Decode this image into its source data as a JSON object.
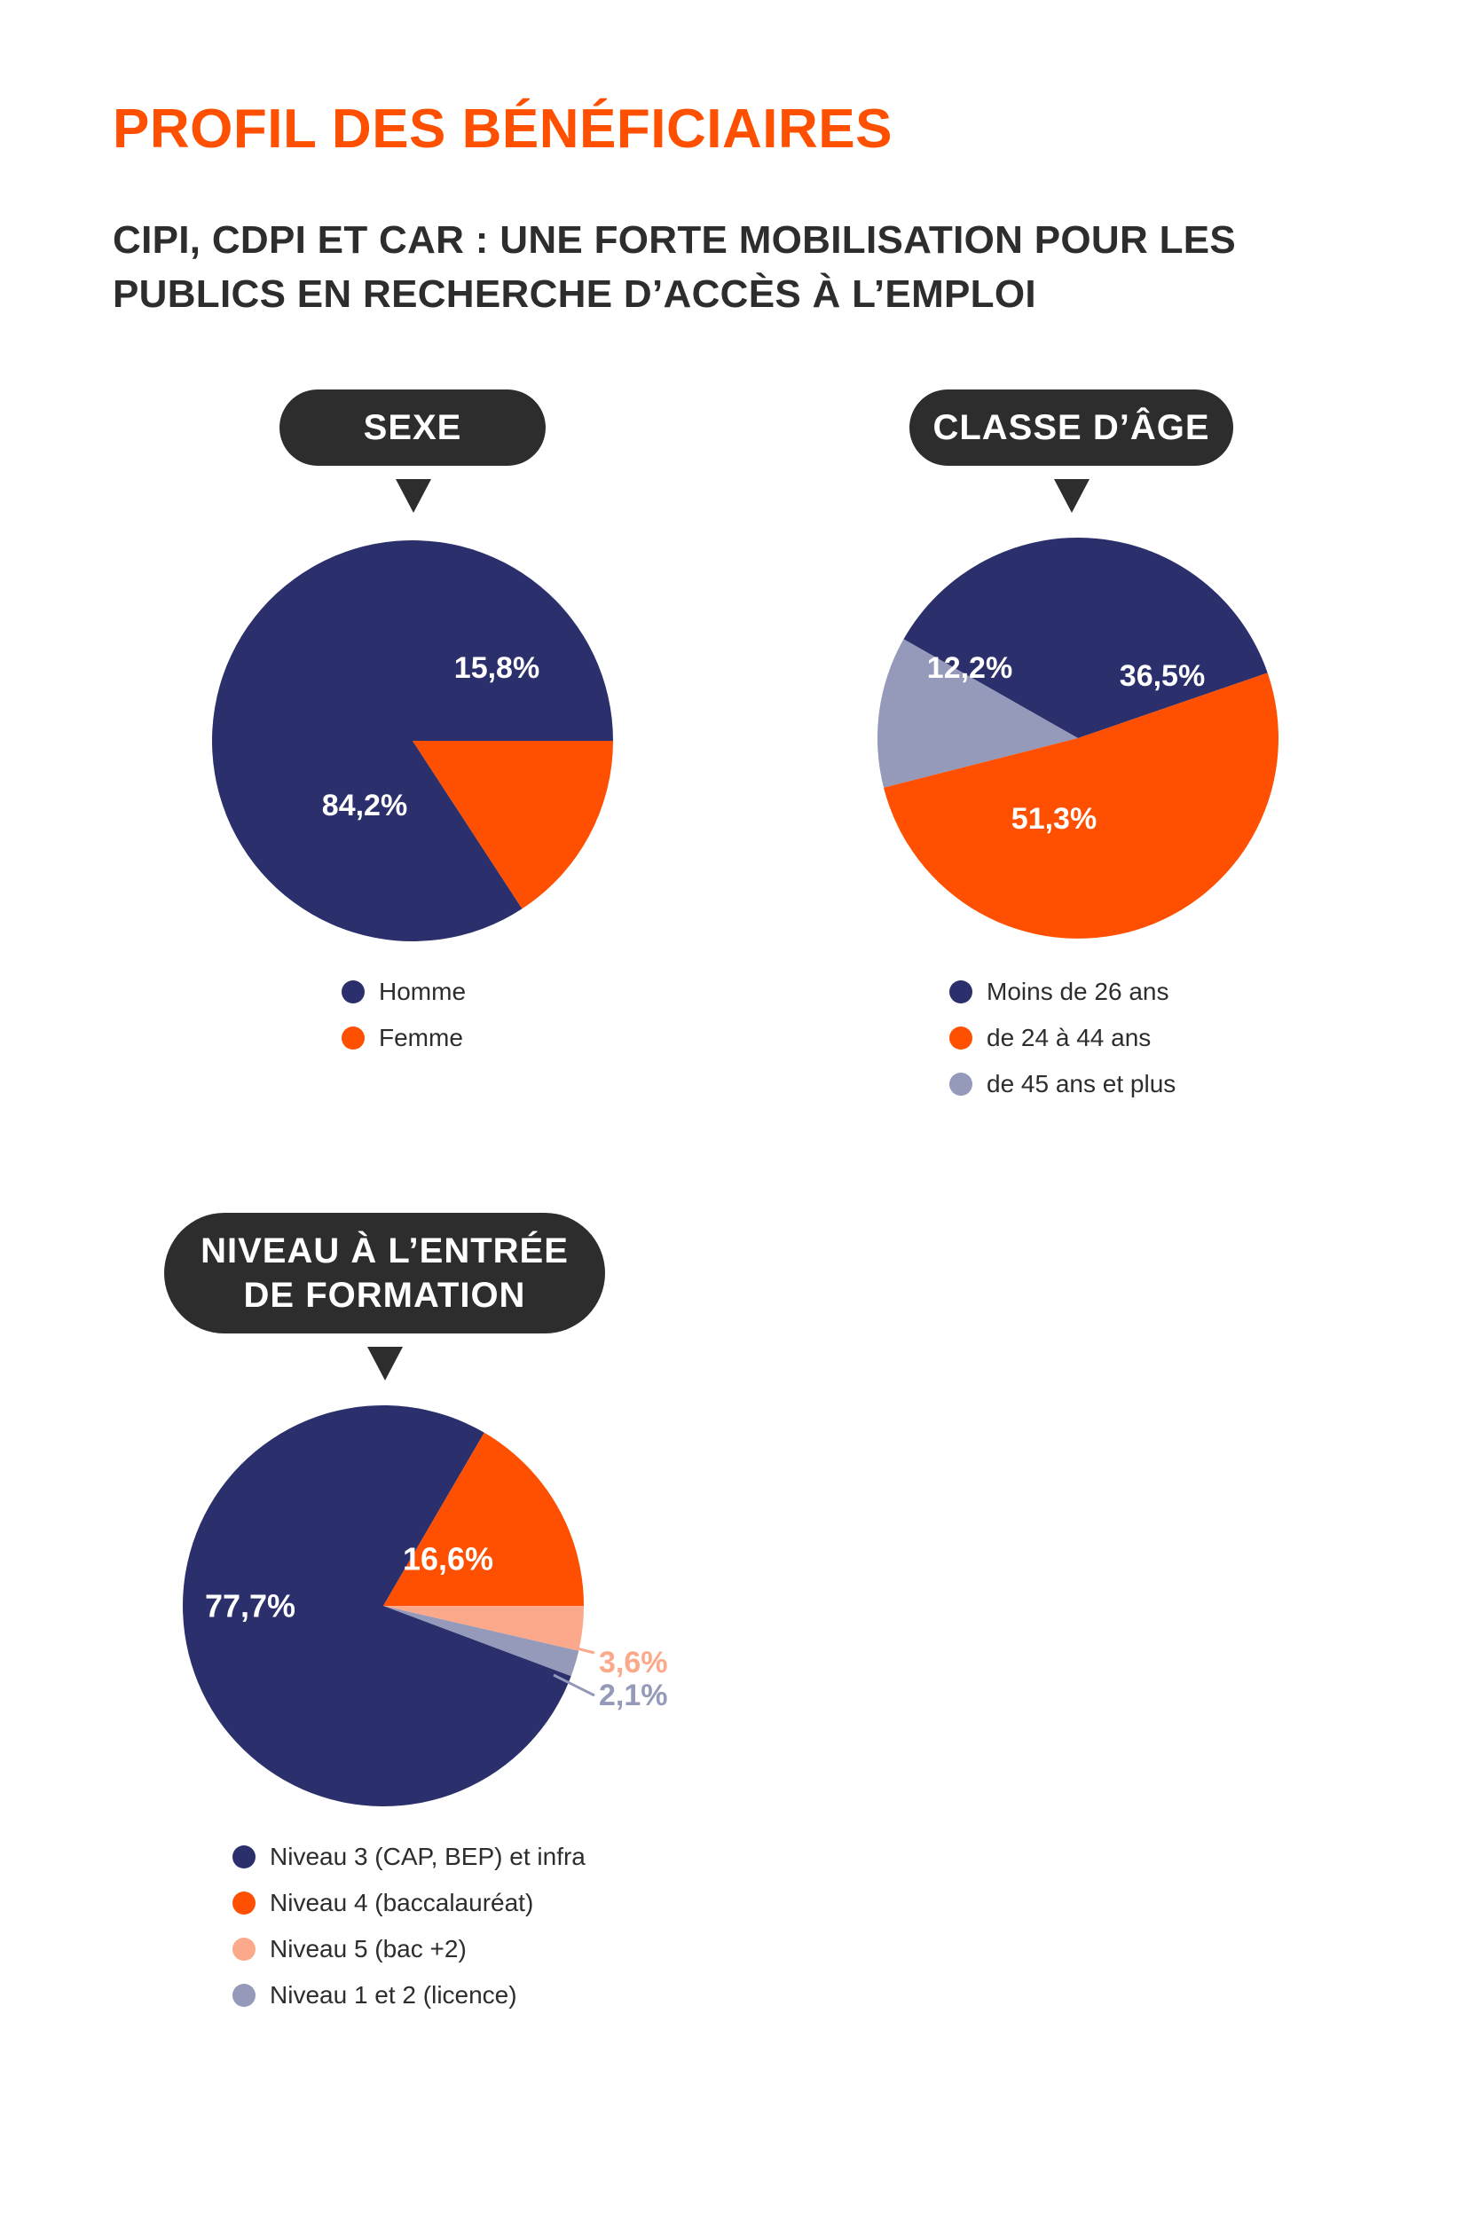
{
  "page": {
    "title": "PROFIL DES BÉNÉFICIAIRES",
    "subtitle_line1": "CIPI, CDPI ET CAR : UNE FORTE MOBILISATION POUR LES",
    "subtitle_line2": "PUBLICS EN RECHERCHE D’ACCÈS À L’EMPLOI"
  },
  "colors": {
    "navy": "#2b2f6b",
    "orange": "#fe5000",
    "peach": "#fba98a",
    "lavender": "#9599ba",
    "accent": "#fe5000",
    "pill": "#2d2d2d"
  },
  "chart_data": [
    {
      "type": "pie",
      "title": "SEXE",
      "start_angle_deg": 0,
      "direction": "counterclockwise",
      "slices": [
        {
          "label": "Homme",
          "value": 84.2,
          "display": "84,2%",
          "color": "#2b2f6b"
        },
        {
          "label": "Femme",
          "value": 15.8,
          "display": "15,8%",
          "color": "#fe5000"
        }
      ]
    },
    {
      "type": "pie",
      "title": "CLASSE D’ÂGE",
      "start_angle_deg": 19,
      "direction": "counterclockwise",
      "slices": [
        {
          "label": "Moins de 26 ans",
          "value": 36.5,
          "display": "36,5%",
          "color": "#2b2f6b"
        },
        {
          "label": "de 45 ans et plus",
          "value": 12.2,
          "display": "12,2%",
          "color": "#9599ba"
        },
        {
          "label": "de 24 à 44 ans",
          "value": 51.3,
          "display": "51,3%",
          "color": "#fe5000"
        }
      ],
      "legend_order": [
        "Moins de 26 ans",
        "de 24 à 44 ans",
        "de 45 ans et plus"
      ]
    },
    {
      "type": "pie",
      "title_line1": "NIVEAU À L’ENTRÉE",
      "title_line2": "DE FORMATION",
      "start_angle_deg": 0,
      "direction": "clockwise",
      "slices": [
        {
          "label": "Niveau 5 (bac +2)",
          "value": 3.6,
          "display": "3,6%",
          "color": "#fba98a",
          "callout": true
        },
        {
          "label": "Niveau 1 et 2 (licence)",
          "value": 2.1,
          "display": "2,1%",
          "color": "#9599ba",
          "callout": true
        },
        {
          "label": "Niveau 3 (CAP, BEP) et infra",
          "value": 77.7,
          "display": "77,7%",
          "color": "#2b2f6b"
        },
        {
          "label": "Niveau 4 (baccalauréat)",
          "value": 16.6,
          "display": "16,6%",
          "color": "#fe5000"
        }
      ],
      "legend_order": [
        "Niveau 3 (CAP, BEP) et infra",
        "Niveau 4 (baccalauréat)",
        "Niveau 5 (bac +2)",
        "Niveau 1 et 2 (licence)"
      ]
    }
  ]
}
